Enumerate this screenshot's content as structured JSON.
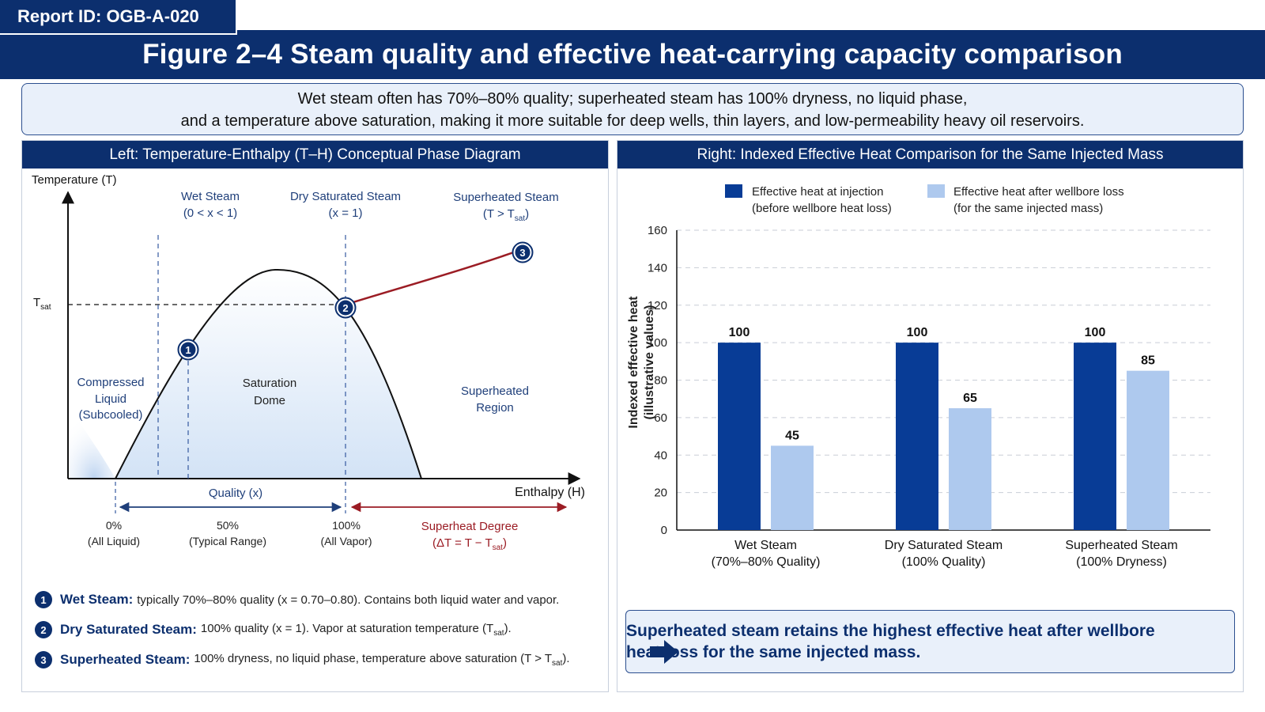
{
  "report_id": "Report ID: OGB-A-020",
  "title": "Figure 2–4 Steam quality and effective heat-carrying capacity comparison",
  "summary": {
    "line1": "Wet steam often has 70%–80% quality; superheated steam has 100% dryness, no liquid phase,",
    "line2": "and a temperature above saturation, making it more suitable for deep wells, thin layers, and low-permeability heavy oil reservoirs."
  },
  "left_panel": {
    "header": "Left: Temperature-Enthalpy (T–H) Conceptual Phase Diagram",
    "y_axis_label": "Temperature (T)",
    "x_axis_label": "Enthalpy (H)",
    "tsat_label": "T",
    "tsat_sub": "sat",
    "zones": {
      "wet_title": "Wet Steam",
      "wet_sub": "(0 < x < 1)",
      "dry_title": "Dry Saturated Steam",
      "dry_sub": "(x = 1)",
      "super_title": "Superheated Steam",
      "super_sub_pre": "(T > T",
      "super_sub_sub": "sat",
      "super_sub_post": ")"
    },
    "regions": {
      "compressed_1": "Compressed",
      "compressed_2": "Liquid",
      "compressed_3": "(Subcooled)",
      "dome_1": "Saturation",
      "dome_2": "Dome",
      "superregion_1": "Superheated",
      "superregion_2": "Region"
    },
    "points": [
      "1",
      "2",
      "3"
    ],
    "quality_label": "Quality (x)",
    "ticks": {
      "t0": "0%",
      "t0_sub": "(All Liquid)",
      "t50": "50%",
      "t50_sub": "(Typical Range)",
      "t100": "100%",
      "t100_sub": "(All Vapor)"
    },
    "superheat_label": "Superheat Degree",
    "superheat_formula_pre": "(ΔT = T − T",
    "superheat_formula_sub": "sat",
    "superheat_formula_post": ")",
    "notes": [
      {
        "num": "1",
        "label": "Wet Steam:",
        "text": "typically 70%–80% quality (x = 0.70–0.80). Contains both liquid water and  vapor.",
        "sub": "",
        "post": ""
      },
      {
        "num": "2",
        "label": "Dry Saturated Steam:",
        "text": "100% quality (x = 1). Vapor at saturation temperature (T",
        "sub": "sat",
        "post": ")."
      },
      {
        "num": "3",
        "label": "Superheated Steam:",
        "text": "100% dryness, no liquid phase, temperature above saturation (T > T",
        "sub": "sat",
        "post": ")."
      }
    ]
  },
  "right_panel": {
    "header": "Right: Indexed Effective Heat Comparison for the Same Injected Mass",
    "callout": {
      "line1": "Superheated steam retains the highest effective heat after wellbore",
      "line2": "heat loss for the same injected mass."
    }
  },
  "colors": {
    "navy": "#0c2f6e",
    "bar_dark": "#083c96",
    "bar_light": "#aec9ee",
    "superheat_red": "#9b1c24"
  },
  "chart_data": [
    {
      "type": "bar",
      "title": "",
      "ylabel_line1": "Indexed effective heat",
      "ylabel_line2": "(illustrative values)",
      "ylim": [
        0,
        160
      ],
      "yticks": [
        0,
        20,
        40,
        60,
        80,
        100,
        120,
        140,
        160
      ],
      "grid": true,
      "legend_position": "top",
      "categories": [
        {
          "line1": "Wet Steam",
          "line2": "(70%–80% Quality)"
        },
        {
          "line1": "Dry Saturated Steam",
          "line2": "(100% Quality)"
        },
        {
          "line1": "Superheated Steam",
          "line2": "(100% Dryness)"
        }
      ],
      "series": [
        {
          "name": "Effective heat at injection",
          "name_sub": "(before wellbore heat loss)",
          "values": [
            100,
            100,
            100
          ],
          "color": "#083c96"
        },
        {
          "name": "Effective heat after wellbore loss",
          "name_sub": "(for the same injected mass)",
          "values": [
            45,
            65,
            85
          ],
          "color": "#aec9ee"
        }
      ]
    }
  ]
}
